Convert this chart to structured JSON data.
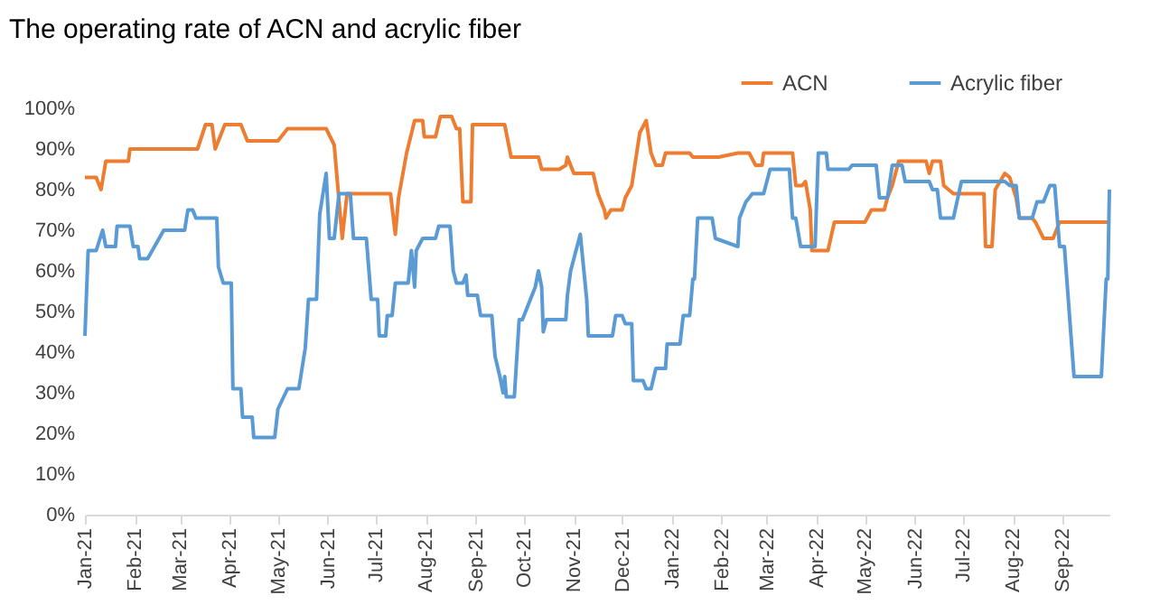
{
  "chart_data": {
    "type": "line",
    "title": "The operating rate of ACN and acrylic fiber",
    "xlim": [
      "2021-01-01",
      "2022-09-30"
    ],
    "xticks": [
      {
        "value": "2021-01-01",
        "label": "Jan-21"
      },
      {
        "value": "2021-02-01",
        "label": "Feb-21"
      },
      {
        "value": "2021-03-01",
        "label": "Mar-21"
      },
      {
        "value": "2021-04-01",
        "label": "Apr-21"
      },
      {
        "value": "2021-05-01",
        "label": "May-21"
      },
      {
        "value": "2021-06-01",
        "label": "Jun-21"
      },
      {
        "value": "2021-07-01",
        "label": "Jul-21"
      },
      {
        "value": "2021-08-01",
        "label": "Aug-21"
      },
      {
        "value": "2021-09-01",
        "label": "Sep-21"
      },
      {
        "value": "2021-10-01",
        "label": "Oct-21"
      },
      {
        "value": "2021-11-01",
        "label": "Nov-21"
      },
      {
        "value": "2021-12-01",
        "label": "Dec-21"
      },
      {
        "value": "2022-01-01",
        "label": "Jan-22"
      },
      {
        "value": "2022-02-01",
        "label": "Feb-22"
      },
      {
        "value": "2022-03-01",
        "label": "Mar-22"
      },
      {
        "value": "2022-04-01",
        "label": "Apr-22"
      },
      {
        "value": "2022-05-01",
        "label": "May-22"
      },
      {
        "value": "2022-06-01",
        "label": "Jun-22"
      },
      {
        "value": "2022-07-01",
        "label": "Jul-22"
      },
      {
        "value": "2022-08-01",
        "label": "Aug-22"
      },
      {
        "value": "2022-09-01",
        "label": "Sep-22"
      }
    ],
    "ylim": [
      0,
      100
    ],
    "yticks": [
      {
        "value": 0,
        "label": "0%"
      },
      {
        "value": 10,
        "label": "10%"
      },
      {
        "value": 20,
        "label": "20%"
      },
      {
        "value": 30,
        "label": "30%"
      },
      {
        "value": 40,
        "label": "40%"
      },
      {
        "value": 50,
        "label": "50%"
      },
      {
        "value": 60,
        "label": "60%"
      },
      {
        "value": 70,
        "label": "70%"
      },
      {
        "value": 80,
        "label": "80%"
      },
      {
        "value": 90,
        "label": "90%"
      },
      {
        "value": 100,
        "label": "100%"
      }
    ],
    "legend": "top right",
    "grid": false,
    "marker": "none",
    "line_style": "solid",
    "series": [
      {
        "name": "ACN",
        "color": "#ed7d31",
        "x": [
          "2021-01-01",
          "2021-01-08",
          "2021-01-11",
          "2021-01-14",
          "2021-01-28",
          "2021-01-29",
          "2021-03-12",
          "2021-03-17",
          "2021-03-21",
          "2021-03-23",
          "2021-03-29",
          "2021-04-08",
          "2021-04-12",
          "2021-05-01",
          "2021-05-07",
          "2021-05-31",
          "2021-06-05",
          "2021-06-10",
          "2021-06-13",
          "2021-07-10",
          "2021-07-13",
          "2021-07-15",
          "2021-07-20",
          "2021-07-25",
          "2021-07-30",
          "2021-07-31",
          "2021-08-07",
          "2021-08-10",
          "2021-08-17",
          "2021-08-20",
          "2021-08-22",
          "2021-08-24",
          "2021-08-29",
          "2021-08-30",
          "2021-09-19",
          "2021-09-23",
          "2021-10-10",
          "2021-10-12",
          "2021-10-23",
          "2021-10-27",
          "2021-10-28",
          "2021-11-01",
          "2021-11-13",
          "2021-11-16",
          "2021-11-20",
          "2021-11-21",
          "2021-11-24",
          "2021-12-01",
          "2021-12-03",
          "2021-12-07",
          "2021-12-12",
          "2021-12-16",
          "2021-12-19",
          "2021-12-22",
          "2021-12-26",
          "2021-12-28",
          "2022-01-12",
          "2022-01-14",
          "2022-01-30",
          "2022-02-11",
          "2022-02-18",
          "2022-02-22",
          "2022-02-26",
          "2022-02-27",
          "2022-03-17",
          "2022-03-19",
          "2022-03-23",
          "2022-03-25",
          "2022-03-28",
          "2022-03-29",
          "2022-04-08",
          "2022-04-12",
          "2022-05-01",
          "2022-05-05",
          "2022-05-13",
          "2022-05-15",
          "2022-05-18",
          "2022-05-22",
          "2022-06-08",
          "2022-06-10",
          "2022-06-12",
          "2022-06-17",
          "2022-06-19",
          "2022-06-25",
          "2022-07-14",
          "2022-07-15",
          "2022-07-19",
          "2022-07-21",
          "2022-07-27",
          "2022-07-30",
          "2022-08-03",
          "2022-08-05",
          "2022-08-13",
          "2022-08-15",
          "2022-08-20",
          "2022-08-26",
          "2022-08-30",
          "2022-09-30"
        ],
        "values": [
          83,
          83,
          80,
          87,
          87,
          90,
          90,
          96,
          96,
          90,
          96,
          96,
          92,
          92,
          95,
          95,
          91,
          68,
          79,
          79,
          69,
          78,
          89,
          97,
          97,
          93,
          93,
          98,
          98,
          95,
          95,
          77,
          77,
          96,
          96,
          88,
          88,
          85,
          85,
          86,
          88,
          84,
          84,
          79,
          75,
          73,
          75,
          75,
          78,
          81,
          94,
          97,
          89,
          86,
          86,
          89,
          89,
          88,
          88,
          89,
          89,
          86,
          86,
          89,
          89,
          81,
          81,
          82,
          75,
          65,
          65,
          72,
          72,
          75,
          75,
          78,
          81,
          87,
          87,
          84,
          87,
          87,
          81,
          79,
          79,
          66,
          66,
          80,
          84,
          83,
          78,
          73,
          73,
          72,
          68,
          68,
          72,
          72
        ]
      },
      {
        "name": "Acrylic fiber",
        "color": "#5b9bd5",
        "x": [
          "2021-01-01",
          "2021-01-03",
          "2021-01-08",
          "2021-01-12",
          "2021-01-14",
          "2021-01-20",
          "2021-01-21",
          "2021-01-29",
          "2021-01-31",
          "2021-02-03",
          "2021-02-04",
          "2021-02-09",
          "2021-02-19",
          "2021-03-04",
          "2021-03-06",
          "2021-03-09",
          "2021-03-11",
          "2021-03-24",
          "2021-03-25",
          "2021-03-28",
          "2021-04-02",
          "2021-04-03",
          "2021-04-08",
          "2021-04-09",
          "2021-04-15",
          "2021-04-16",
          "2021-04-29",
          "2021-05-01",
          "2021-05-07",
          "2021-05-14",
          "2021-05-18",
          "2021-05-20",
          "2021-05-25",
          "2021-05-27",
          "2021-05-31",
          "2021-06-02",
          "2021-06-05",
          "2021-06-08",
          "2021-06-15",
          "2021-06-17",
          "2021-06-25",
          "2021-06-28",
          "2021-07-02",
          "2021-07-03",
          "2021-07-07",
          "2021-07-08",
          "2021-07-11",
          "2021-07-13",
          "2021-07-21",
          "2021-07-23",
          "2021-07-25",
          "2021-07-26",
          "2021-07-30",
          "2021-08-07",
          "2021-08-09",
          "2021-08-16",
          "2021-08-18",
          "2021-08-20",
          "2021-08-24",
          "2021-08-26",
          "2021-08-27",
          "2021-09-02",
          "2021-09-04",
          "2021-09-11",
          "2021-09-13",
          "2021-09-16",
          "2021-09-18",
          "2021-09-19",
          "2021-09-20",
          "2021-09-25",
          "2021-09-28",
          "2021-09-30",
          "2021-10-08",
          "2021-10-10",
          "2021-10-12",
          "2021-10-13",
          "2021-10-15",
          "2021-10-27",
          "2021-10-28",
          "2021-10-30",
          "2021-11-05",
          "2021-11-06",
          "2021-11-09",
          "2021-11-10",
          "2021-11-25",
          "2021-11-27",
          "2021-12-01",
          "2021-12-03",
          "2021-12-07",
          "2021-12-08",
          "2021-12-14",
          "2021-12-16",
          "2021-12-19",
          "2021-12-22",
          "2021-12-28",
          "2021-12-29",
          "2022-01-06",
          "2022-01-08",
          "2022-01-12",
          "2022-01-14",
          "2022-01-15",
          "2022-01-17",
          "2022-01-26",
          "2022-01-28",
          "2022-02-11",
          "2022-02-12",
          "2022-02-16",
          "2022-02-20",
          "2022-02-27",
          "2022-03-03",
          "2022-03-15",
          "2022-03-17",
          "2022-03-19",
          "2022-03-22",
          "2022-03-31",
          "2022-04-02",
          "2022-04-07",
          "2022-04-08",
          "2022-04-21",
          "2022-04-23",
          "2022-05-08",
          "2022-05-10",
          "2022-05-15",
          "2022-05-18",
          "2022-05-24",
          "2022-05-26",
          "2022-06-10",
          "2022-06-12",
          "2022-06-15",
          "2022-06-17",
          "2022-06-25",
          "2022-06-30",
          "2022-07-27",
          "2022-07-30",
          "2022-08-03",
          "2022-08-05",
          "2022-08-13",
          "2022-08-16",
          "2022-08-20",
          "2022-08-24",
          "2022-08-27",
          "2022-08-30",
          "2022-09-02",
          "2022-09-08",
          "2022-09-25",
          "2022-09-28",
          "2022-09-29",
          "2022-09-30"
        ],
        "values": [
          44,
          65,
          65,
          70,
          66,
          66,
          71,
          71,
          66,
          66,
          63,
          63,
          70,
          70,
          75,
          75,
          73,
          73,
          61,
          57,
          57,
          31,
          31,
          24,
          24,
          19,
          19,
          26,
          31,
          31,
          41,
          53,
          53,
          74,
          84,
          68,
          68,
          79,
          79,
          68,
          68,
          53,
          53,
          44,
          44,
          49,
          49,
          57,
          57,
          65,
          56,
          65,
          68,
          68,
          71,
          71,
          60,
          57,
          57,
          59,
          54,
          54,
          49,
          49,
          39,
          34,
          30,
          34,
          29,
          29,
          48,
          48,
          56,
          60,
          56,
          45,
          48,
          48,
          54,
          60,
          69,
          65,
          53,
          44,
          44,
          49,
          49,
          47,
          47,
          33,
          33,
          31,
          31,
          36,
          36,
          42,
          42,
          49,
          49,
          58,
          58,
          73,
          73,
          68,
          66,
          73,
          77,
          79,
          79,
          85,
          85,
          73,
          73,
          66,
          66,
          89,
          89,
          85,
          85,
          86,
          86,
          78,
          78,
          86,
          86,
          82,
          82,
          80,
          80,
          73,
          73,
          82,
          82,
          81,
          81,
          73,
          73,
          77,
          77,
          81,
          81,
          66,
          66,
          34,
          34,
          58,
          58,
          80
        ]
      }
    ]
  }
}
